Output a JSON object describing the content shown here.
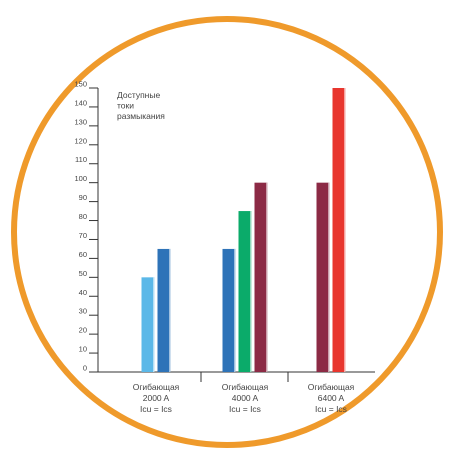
{
  "colors": {
    "frame": "#ef9a2b",
    "background": "#ffffff",
    "axis": "#333333",
    "text": "#444444"
  },
  "chart_data": {
    "type": "bar",
    "title": "",
    "ylabel_lines": [
      "Доступные",
      "токи",
      "размыкания"
    ],
    "ylim": [
      0,
      150
    ],
    "yticks": [
      0,
      10,
      20,
      30,
      40,
      50,
      60,
      70,
      80,
      90,
      100,
      110,
      120,
      130,
      140,
      150
    ],
    "grid": false,
    "legend": "none",
    "categories": [
      {
        "lines": [
          "Огибающая",
          "2000 A",
          "Icu = Ics"
        ]
      },
      {
        "lines": [
          "Огибающая",
          "4000 A",
          "Icu = Ics"
        ]
      },
      {
        "lines": [
          "Огибающая",
          "6400 A",
          "Icu = Ics"
        ]
      }
    ],
    "bars": [
      {
        "category": 0,
        "value": 50,
        "color": "#5bb8e8"
      },
      {
        "category": 0,
        "value": 65,
        "color": "#2e73b8"
      },
      {
        "category": 1,
        "value": 65,
        "color": "#2e73b8"
      },
      {
        "category": 1,
        "value": 85,
        "color": "#0bab6a"
      },
      {
        "category": 1,
        "value": 100,
        "color": "#8c2a45"
      },
      {
        "category": 2,
        "value": 100,
        "color": "#8c2a45"
      },
      {
        "category": 2,
        "value": 150,
        "color": "#e8362e"
      }
    ]
  }
}
